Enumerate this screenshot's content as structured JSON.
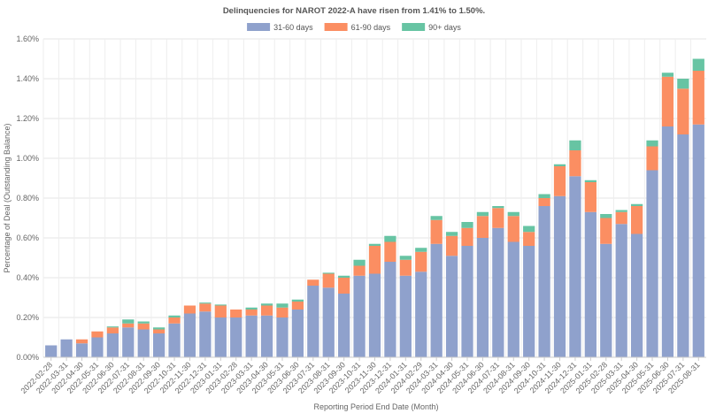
{
  "chart_data": {
    "type": "bar",
    "stacked": true,
    "title": "Delinquencies for NAROT 2022-A have risen from 1.41% to 1.50%.",
    "xlabel": "Reporting Period End Date (Month)",
    "ylabel": "Percentage of Deal (Outstanding Balance)",
    "ylim": [
      0,
      1.6
    ],
    "yticks": [
      "0.00%",
      "0.20%",
      "0.40%",
      "0.60%",
      "0.80%",
      "1.00%",
      "1.20%",
      "1.40%",
      "1.60%"
    ],
    "legend_position": "top-center",
    "grid": true,
    "categories": [
      "2022-02-28",
      "2022-03-31",
      "2022-04-30",
      "2022-05-31",
      "2022-06-30",
      "2022-07-31",
      "2022-08-31",
      "2022-09-30",
      "2022-10-31",
      "2022-11-30",
      "2022-12-31",
      "2023-01-31",
      "2023-02-28",
      "2023-03-31",
      "2023-04-30",
      "2023-05-31",
      "2023-06-30",
      "2023-07-31",
      "2023-08-31",
      "2023-09-30",
      "2023-10-31",
      "2023-11-30",
      "2023-12-31",
      "2024-01-31",
      "2024-02-29",
      "2024-03-31",
      "2024-04-30",
      "2024-05-31",
      "2024-06-30",
      "2024-07-31",
      "2024-08-31",
      "2024-09-30",
      "2024-10-31",
      "2024-11-30",
      "2024-12-31",
      "2025-01-31",
      "2025-02-28",
      "2025-03-31",
      "2025-04-30",
      "2025-05-31",
      "2025-06-30",
      "2025-07-31",
      "2025-08-31"
    ],
    "series": [
      {
        "name": "31-60 days",
        "color": "#8fa1cc",
        "values": [
          0.06,
          0.09,
          0.07,
          0.1,
          0.12,
          0.15,
          0.14,
          0.12,
          0.17,
          0.22,
          0.23,
          0.2,
          0.2,
          0.21,
          0.21,
          0.2,
          0.24,
          0.36,
          0.35,
          0.32,
          0.41,
          0.42,
          0.48,
          0.41,
          0.43,
          0.57,
          0.51,
          0.56,
          0.6,
          0.65,
          0.58,
          0.56,
          0.76,
          0.81,
          0.91,
          0.73,
          0.57,
          0.67,
          0.62,
          0.94,
          1.16,
          1.12,
          1.17
        ]
      },
      {
        "name": "61-90 days",
        "color": "#fb8e62",
        "values": [
          0,
          0,
          0.02,
          0.03,
          0.03,
          0.02,
          0.03,
          0.02,
          0.03,
          0.04,
          0.04,
          0.06,
          0.04,
          0.03,
          0.05,
          0.05,
          0.04,
          0.03,
          0.07,
          0.08,
          0.05,
          0.14,
          0.1,
          0.08,
          0.1,
          0.12,
          0.1,
          0.09,
          0.11,
          0.1,
          0.13,
          0.07,
          0.04,
          0.15,
          0.13,
          0.15,
          0.13,
          0.06,
          0.14,
          0.12,
          0.25,
          0.23,
          0.27
        ]
      },
      {
        "name": "90+ days",
        "color": "#67c4a3",
        "values": [
          0,
          0,
          0,
          0,
          0.005,
          0.02,
          0.01,
          0.01,
          0.01,
          0,
          0.005,
          0.005,
          0,
          0.01,
          0.01,
          0.02,
          0.01,
          0,
          0.005,
          0.01,
          0.03,
          0.01,
          0.03,
          0.02,
          0.02,
          0.02,
          0.02,
          0.03,
          0.02,
          0.01,
          0.02,
          0.03,
          0.02,
          0.01,
          0.05,
          0.01,
          0.02,
          0.01,
          0.01,
          0.03,
          0.02,
          0.05,
          0.06
        ]
      }
    ]
  }
}
